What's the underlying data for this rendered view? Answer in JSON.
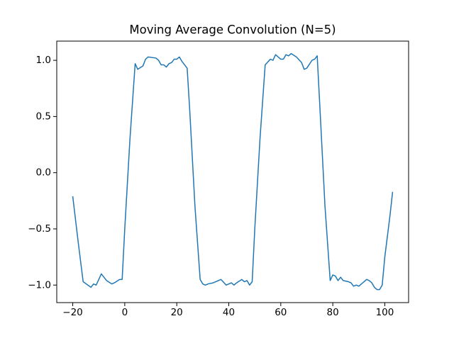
{
  "chart_data": {
    "type": "line",
    "title": "Moving Average Convolution (N=5)",
    "x": [
      -20,
      -18,
      -16,
      -13,
      -12,
      -11,
      -9,
      -7,
      -5,
      -4,
      -2,
      -1,
      0,
      2,
      4,
      5,
      7,
      8,
      9,
      12,
      13,
      14,
      15,
      16,
      17,
      18,
      19,
      20,
      21,
      22,
      24,
      25,
      27,
      29,
      30,
      31,
      32,
      34,
      36,
      37,
      39,
      41,
      42,
      43,
      45,
      46,
      47,
      48,
      49,
      50,
      52,
      54,
      56,
      57,
      58,
      60,
      61,
      62,
      63,
      64,
      66,
      68,
      69,
      70,
      72,
      73,
      74,
      75,
      77,
      79,
      80,
      81,
      82,
      83,
      84,
      86,
      87,
      88,
      89,
      90,
      92,
      93,
      94,
      95,
      96,
      97,
      98,
      99,
      100,
      102,
      103
    ],
    "series": [
      {
        "color": "#1f77b4",
        "values": [
          -0.21,
          -0.6,
          -0.97,
          -1.02,
          -0.99,
          -1.0,
          -0.9,
          -0.96,
          -0.99,
          -0.98,
          -0.95,
          -0.95,
          -0.5,
          0.3,
          0.97,
          0.92,
          0.95,
          1.01,
          1.03,
          1.02,
          1.0,
          0.96,
          0.96,
          0.94,
          0.97,
          0.98,
          1.01,
          1.01,
          1.03,
          0.99,
          0.93,
          0.55,
          -0.3,
          -0.95,
          -0.99,
          -1.0,
          -0.99,
          -0.98,
          -0.96,
          -0.95,
          -1.0,
          -0.98,
          -1.0,
          -0.98,
          -0.95,
          -0.97,
          -0.96,
          -1.0,
          -0.97,
          -0.5,
          0.3,
          0.96,
          1.01,
          1.0,
          1.05,
          1.01,
          1.01,
          1.05,
          1.04,
          1.06,
          1.03,
          0.98,
          0.92,
          0.93,
          1.0,
          1.01,
          1.04,
          0.6,
          -0.3,
          -0.96,
          -0.91,
          -0.92,
          -0.96,
          -0.93,
          -0.96,
          -0.97,
          -0.98,
          -1.01,
          -1.0,
          -1.01,
          -0.97,
          -0.95,
          -0.96,
          -0.98,
          -1.02,
          -1.04,
          -1.04,
          -1.0,
          -0.75,
          -0.38,
          -0.17
        ]
      }
    ],
    "xlim": [
      -26.15,
      109.15
    ],
    "ylim": [
      -1.156,
      1.171
    ],
    "xticks": [
      {
        "value": -20,
        "label": "−20"
      },
      0,
      20,
      40,
      60,
      80,
      100
    ],
    "yticks": [
      {
        "value": -1,
        "label": "−1.0"
      },
      {
        "value": -0.5,
        "label": "−0.5"
      },
      {
        "value": 0,
        "label": "0.0"
      },
      0.5,
      {
        "value": 1,
        "label": "1.0"
      }
    ]
  }
}
